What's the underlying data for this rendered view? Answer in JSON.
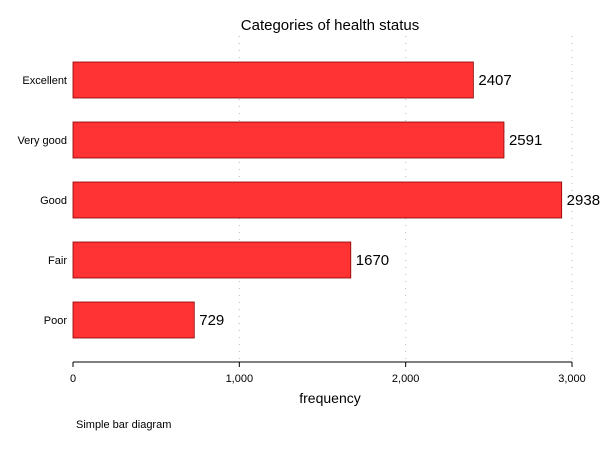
{
  "chart_data": {
    "type": "bar",
    "orientation": "horizontal",
    "title": "Categories of health status",
    "xlabel": "frequency",
    "ylabel": "",
    "categories": [
      "Excellent",
      "Very good",
      "Good",
      "Fair",
      "Poor"
    ],
    "values": [
      2407,
      2591,
      2938,
      1670,
      729
    ],
    "xlim": [
      0,
      3000
    ],
    "xticks": [
      0,
      1000,
      2000,
      3000
    ],
    "xtick_labels": [
      "0",
      "1,000",
      "2,000",
      "3,000"
    ],
    "grid": true,
    "legend": "none",
    "bar_color": "#ff3333",
    "bar_edge_color": "#8b0000"
  },
  "note": "Simple bar diagram"
}
